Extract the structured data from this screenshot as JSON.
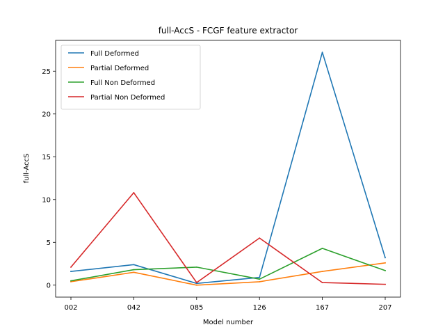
{
  "chart_data": {
    "type": "line",
    "title": "full-AccS - FCGF feature extractor",
    "xlabel": "Model number",
    "ylabel": "full-AccS",
    "categories": [
      "002",
      "042",
      "085",
      "126",
      "167",
      "207"
    ],
    "ylim": [
      -1.4,
      28.6
    ],
    "yticks": [
      0,
      5,
      10,
      15,
      20,
      25
    ],
    "grid": false,
    "legend_position": "upper-left",
    "series": [
      {
        "name": "Full Deformed",
        "color": "#1f77b4",
        "values": [
          1.6,
          2.4,
          0.2,
          0.9,
          27.2,
          3.2
        ]
      },
      {
        "name": "Partial Deformed",
        "color": "#ff7f0e",
        "values": [
          0.4,
          1.5,
          0.0,
          0.4,
          1.6,
          2.6
        ]
      },
      {
        "name": "Full Non Deformed",
        "color": "#2ca02c",
        "values": [
          0.5,
          1.8,
          2.1,
          0.7,
          4.3,
          1.7
        ]
      },
      {
        "name": "Partial Non Deformed",
        "color": "#d62728",
        "values": [
          2.1,
          10.8,
          0.3,
          5.5,
          0.3,
          0.1
        ]
      }
    ]
  }
}
